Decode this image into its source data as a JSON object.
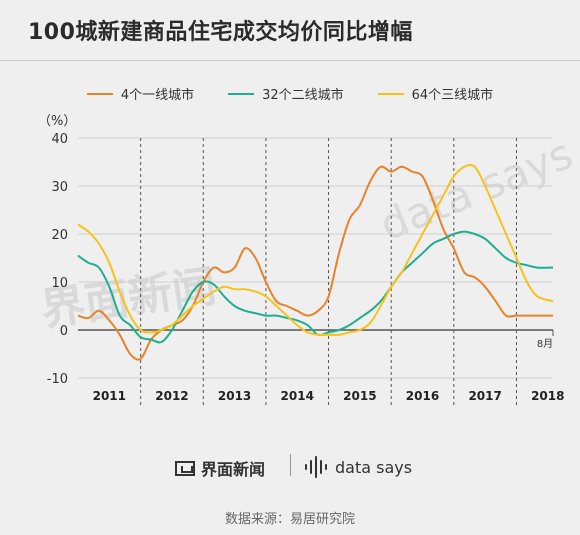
{
  "title": "100城新建商品住宅成交均价同比增幅",
  "unit_label": "（%）",
  "watermark_left": "界面新闻",
  "watermark_right": "data says",
  "brand_left": "界面新闻",
  "brand_right": "data says",
  "source": "数据来源：易居研究院",
  "colors": {
    "series1": "#e8822a",
    "series2": "#1fae8e",
    "series3": "#f5c31a"
  },
  "chart_data": {
    "type": "line",
    "title": "100城新建商品住宅成交均价同比增幅",
    "ylabel": "（%）",
    "xlabel": "",
    "ylim": [
      -10,
      40
    ],
    "yticks": [
      -10,
      0,
      10,
      20,
      30,
      40
    ],
    "year_labels": [
      "2011",
      "2012",
      "2013",
      "2014",
      "2015",
      "2016",
      "2017",
      "2018"
    ],
    "end_label": "8月",
    "grid": "horizontal",
    "legend_position": "top",
    "x_start": "2011-01",
    "x": [
      "2011-01",
      "2011-03",
      "2011-05",
      "2011-07",
      "2011-09",
      "2011-11",
      "2012-01",
      "2012-03",
      "2012-05",
      "2012-07",
      "2012-09",
      "2012-11",
      "2013-01",
      "2013-03",
      "2013-05",
      "2013-07",
      "2013-09",
      "2013-11",
      "2014-01",
      "2014-03",
      "2014-05",
      "2014-07",
      "2014-09",
      "2014-11",
      "2015-01",
      "2015-03",
      "2015-05",
      "2015-07",
      "2015-09",
      "2015-11",
      "2016-01",
      "2016-03",
      "2016-05",
      "2016-07",
      "2016-09",
      "2016-11",
      "2017-01",
      "2017-03",
      "2017-05",
      "2017-07",
      "2017-09",
      "2017-11",
      "2018-01",
      "2018-03",
      "2018-05",
      "2018-08"
    ],
    "series": [
      {
        "name": "4个一线城市",
        "color": "#e8822a",
        "values": [
          3,
          2.5,
          4,
          2,
          -1,
          -5,
          -6,
          -2,
          0,
          1,
          2,
          5,
          10,
          13,
          12,
          13,
          17,
          15,
          10,
          6,
          5,
          4,
          3,
          4,
          7,
          16,
          23,
          26,
          31,
          34,
          33,
          34,
          33,
          32,
          27,
          21,
          17,
          12,
          11,
          9,
          6,
          3,
          3,
          3,
          3,
          3
        ]
      },
      {
        "name": "32个二线城市",
        "color": "#1fae8e",
        "values": [
          15.5,
          14,
          13,
          9,
          3,
          1,
          -1.5,
          -2,
          -2.5,
          0,
          4,
          8,
          10,
          9.5,
          7,
          5,
          4,
          3.5,
          3,
          3,
          2.5,
          2,
          1,
          -1,
          -0.5,
          0,
          1,
          2.5,
          4,
          6,
          9,
          12,
          14,
          16,
          18,
          19,
          20,
          20.5,
          20,
          19,
          17,
          15,
          14,
          13.5,
          13,
          13
        ]
      },
      {
        "name": "64个三线城市",
        "color": "#f5c31a",
        "values": [
          22,
          20.5,
          18,
          14,
          8,
          3,
          0,
          -0.5,
          0,
          1,
          3,
          5,
          6.5,
          8,
          9,
          8.5,
          8.5,
          8,
          7,
          5,
          3,
          1,
          -0.5,
          -1,
          -1,
          -1,
          -0.5,
          0,
          1.5,
          5,
          9,
          12,
          16,
          20,
          24,
          28,
          32,
          34,
          34,
          30,
          25,
          20,
          15,
          10,
          7,
          6
        ]
      }
    ]
  }
}
